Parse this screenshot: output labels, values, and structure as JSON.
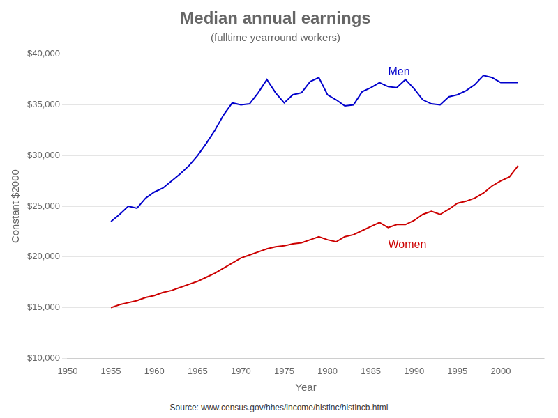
{
  "chart_data": {
    "type": "line",
    "title": "Median annual earnings",
    "subtitle": "(fulltime yearround workers)",
    "xlabel": "Year",
    "ylabel": "Constant $2000",
    "source": "Source: www.census.gov/hhes/income/histinc/histincb.html",
    "x": [
      1955,
      1956,
      1957,
      1958,
      1959,
      1960,
      1961,
      1962,
      1963,
      1964,
      1965,
      1966,
      1967,
      1968,
      1969,
      1970,
      1971,
      1972,
      1973,
      1974,
      1975,
      1976,
      1977,
      1978,
      1979,
      1980,
      1981,
      1982,
      1983,
      1984,
      1985,
      1986,
      1987,
      1988,
      1989,
      1990,
      1991,
      1992,
      1993,
      1994,
      1995,
      1996,
      1997,
      1998,
      1999,
      2000,
      2001,
      2002
    ],
    "series": [
      {
        "name": "Men",
        "color": "#0000cc",
        "values": [
          23500,
          24200,
          25000,
          24800,
          25800,
          26400,
          26800,
          27500,
          28200,
          29000,
          30000,
          31200,
          32500,
          34000,
          35200,
          35000,
          35100,
          36200,
          37500,
          36200,
          35200,
          36000,
          36200,
          37300,
          37700,
          36000,
          35500,
          34900,
          35000,
          36300,
          36700,
          37200,
          36800,
          36700,
          37500,
          36600,
          35500,
          35100,
          35000,
          35800,
          36000,
          36400,
          37000,
          37900,
          37700,
          37200,
          37200,
          37200
        ]
      },
      {
        "name": "Women",
        "color": "#cc0000",
        "values": [
          15000,
          15300,
          15500,
          15700,
          16000,
          16200,
          16500,
          16700,
          17000,
          17300,
          17600,
          18000,
          18400,
          18900,
          19400,
          19900,
          20200,
          20500,
          20800,
          21000,
          21100,
          21300,
          21400,
          21700,
          22000,
          21700,
          21500,
          22000,
          22200,
          22600,
          23000,
          23400,
          22900,
          23200,
          23200,
          23600,
          24200,
          24500,
          24200,
          24700,
          25300,
          25500,
          25800,
          26300,
          27000,
          27500,
          27900,
          29000
        ]
      }
    ],
    "annotations": [
      {
        "text": "Men",
        "x": 1987,
        "y": 38200,
        "color": "#0000cc"
      },
      {
        "text": "Women",
        "x": 1987,
        "y": 21200,
        "color": "#cc0000"
      }
    ],
    "xlim": [
      1950,
      2005
    ],
    "ylim": [
      10000,
      40000
    ],
    "xticks": [
      1950,
      1955,
      1960,
      1965,
      1970,
      1975,
      1980,
      1985,
      1990,
      1995,
      2000
    ],
    "yticks": [
      {
        "value": 10000,
        "label": "$10,000"
      },
      {
        "value": 15000,
        "label": "$15,000"
      },
      {
        "value": 20000,
        "label": "$20,000"
      },
      {
        "value": 25000,
        "label": "$25,000"
      },
      {
        "value": 30000,
        "label": "$30,000"
      },
      {
        "value": 35000,
        "label": "$35,000"
      },
      {
        "value": 40000,
        "label": "$40,000"
      }
    ],
    "grid": "y"
  }
}
